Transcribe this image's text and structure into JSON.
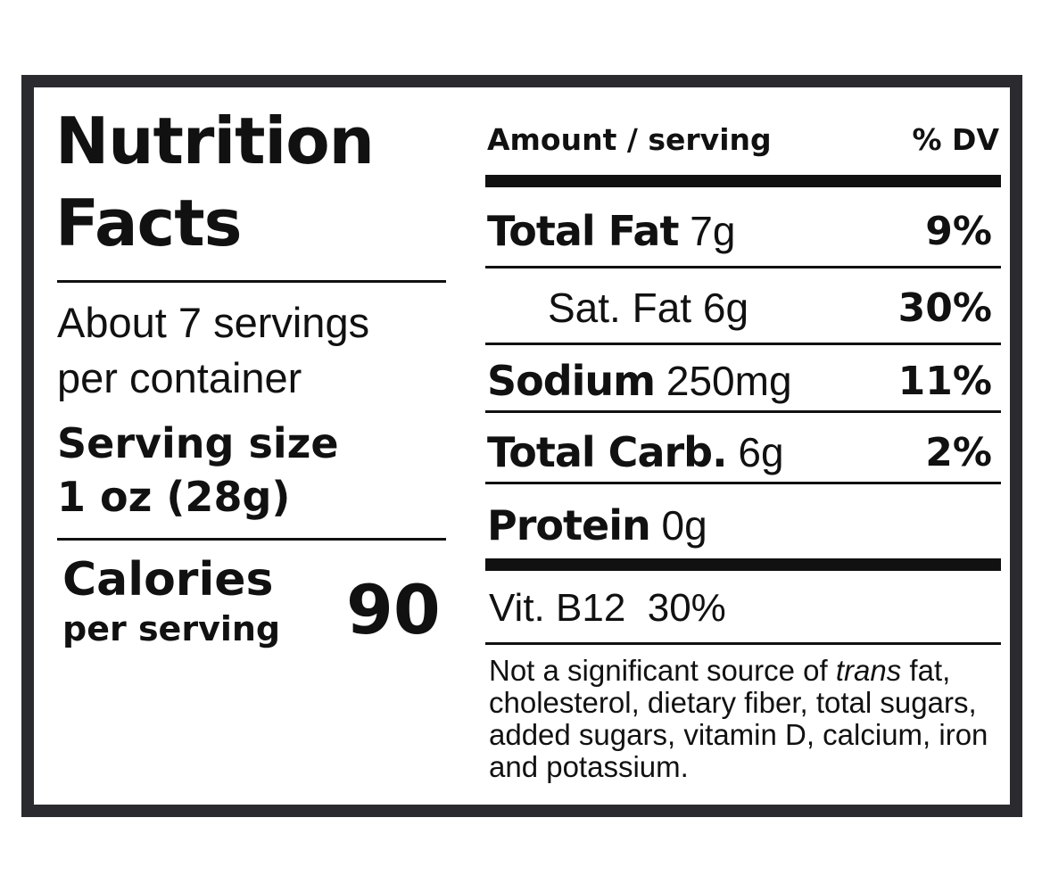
{
  "panel": {
    "title_line1": "Nutrition",
    "title_line2": "Facts",
    "servings_line1": "About 7 servings",
    "servings_line2": "per container",
    "serving_size_label": "Serving size",
    "serving_size_value": "1 oz (28g)",
    "calories_label": "Calories",
    "calories_sub": "per serving",
    "calories_value": "90"
  },
  "table": {
    "header_amount": "Amount / serving",
    "header_dv": "% DV",
    "rows": [
      {
        "name": "Total Fat",
        "amount": "7g",
        "dv": "9%"
      },
      {
        "name": "Sat. Fat",
        "amount": "6g",
        "dv": "30%"
      },
      {
        "name": "Sodium",
        "amount": "250mg",
        "dv": "11%"
      },
      {
        "name": "Total Carb.",
        "amount": "6g",
        "dv": "2%"
      },
      {
        "name": "Protein",
        "amount": "0g",
        "dv": ""
      }
    ],
    "vitamin": "Vit. B12  30%",
    "footnote_start": "Not a significant source of ",
    "footnote_italic": "trans",
    "footnote_rest": " fat, cholesterol, dietary fiber, total sugars, added sugars, vitamin D, calcium, iron and potassium."
  },
  "colors": {
    "frame": "#2b2a2f",
    "text": "#111111",
    "background": "#ffffff"
  }
}
